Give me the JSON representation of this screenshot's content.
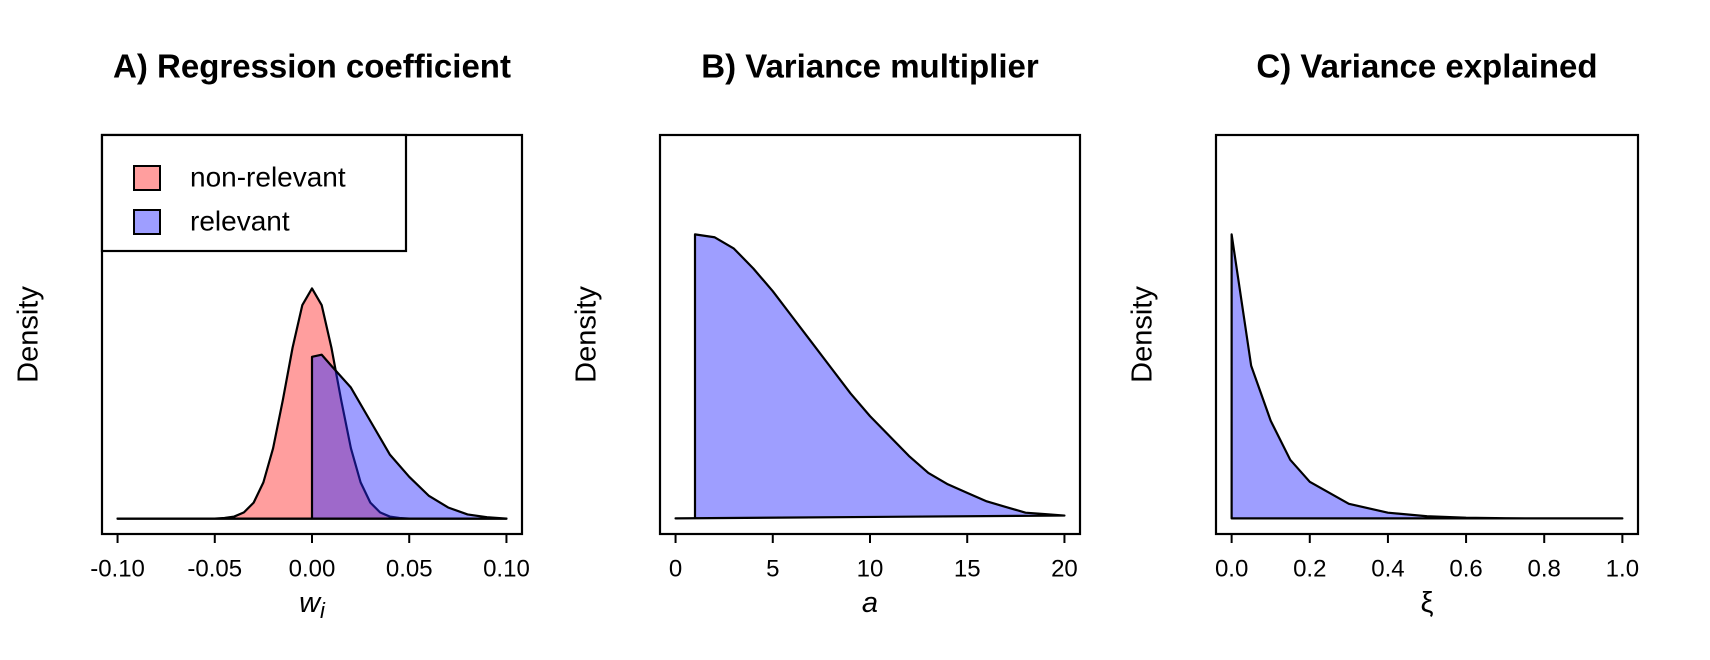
{
  "chart_data": [
    {
      "type": "area",
      "title": "A) Regression coefficient",
      "ylabel": "Density",
      "xlabel": {
        "text": "w",
        "subscript": "i"
      },
      "xlim": [
        -0.108,
        0.108
      ],
      "ylim": [
        -2.2,
        55
      ],
      "xticks": [
        {
          "value": -0.1,
          "label": "-0.10"
        },
        {
          "value": -0.05,
          "label": "-0.05"
        },
        {
          "value": 0,
          "label": "0.00"
        },
        {
          "value": 0.05,
          "label": "0.05"
        },
        {
          "value": 0.1,
          "label": "0.10"
        }
      ],
      "legend": "top-left",
      "series": [
        {
          "name": "non-relevant",
          "color": "rgba(255,40,40,0.45)",
          "x": [
            -0.1,
            -0.05,
            -0.045,
            -0.04,
            -0.035,
            -0.03,
            -0.025,
            -0.02,
            -0.015,
            -0.01,
            -0.005,
            0,
            0.005,
            0.01,
            0.015,
            0.02,
            0.025,
            0.03,
            0.035,
            0.04,
            0.045,
            0.05,
            0.1
          ],
          "values": [
            0,
            0,
            0.1,
            0.3,
            0.9,
            2.3,
            5.2,
            10.1,
            17.0,
            24.5,
            30.6,
            33,
            30.6,
            24.5,
            17.0,
            10.1,
            5.2,
            2.3,
            0.9,
            0.3,
            0.1,
            0,
            0
          ]
        },
        {
          "name": "relevant",
          "color": "rgba(40,40,255,0.45)",
          "x": [
            -0.1,
            0,
            0,
            0.005,
            0.01,
            0.02,
            0.03,
            0.04,
            0.05,
            0.06,
            0.07,
            0.08,
            0.09,
            0.1
          ],
          "values": [
            0,
            0,
            23.2,
            23.5,
            21.9,
            18.8,
            14,
            9.2,
            6,
            3.3,
            1.6,
            0.6,
            0.2,
            0
          ]
        }
      ]
    },
    {
      "type": "area",
      "title": "B) Variance multiplier",
      "ylabel": "Density",
      "xlabel": {
        "text": "a"
      },
      "xlim": [
        -0.8,
        20.8
      ],
      "ylim": [
        -0.0055,
        0.135
      ],
      "xticks": [
        0,
        5,
        10,
        15,
        20
      ],
      "series": [
        {
          "color": "rgba(40,40,255,0.45)",
          "x": [
            0,
            1,
            1,
            2,
            3,
            4,
            5,
            6,
            7,
            8,
            9,
            10,
            11,
            12,
            13,
            14,
            15,
            16,
            17,
            18,
            19,
            20
          ],
          "values": [
            0,
            0,
            0.1,
            0.099,
            0.095,
            0.088,
            0.08,
            0.071,
            0.062,
            0.053,
            0.044,
            0.036,
            0.029,
            0.022,
            0.016,
            0.012,
            0.009,
            0.006,
            0.004,
            0.002,
            0.0015,
            0.001
          ]
        }
      ]
    },
    {
      "type": "area",
      "title": "C) Variance explained",
      "ylabel": "Density",
      "xlabel": {
        "text": "ξ"
      },
      "xlim": [
        -0.04,
        1.04
      ],
      "ylim": [
        -0.44,
        10.8
      ],
      "xticks": [
        {
          "value": 0,
          "label": "0.0"
        },
        {
          "value": 0.2,
          "label": "0.2"
        },
        {
          "value": 0.4,
          "label": "0.4"
        },
        {
          "value": 0.6,
          "label": "0.6"
        },
        {
          "value": 0.8,
          "label": "0.8"
        },
        {
          "value": 1,
          "label": "1.0"
        }
      ],
      "series": [
        {
          "color": "rgba(40,40,255,0.45)",
          "x": [
            0,
            0,
            0.05,
            0.1,
            0.15,
            0.2,
            0.3,
            0.4,
            0.5,
            0.6,
            0.7,
            0.8,
            0.9,
            1.0
          ],
          "values": [
            0,
            8,
            4.3,
            2.75,
            1.65,
            1.03,
            0.41,
            0.16,
            0.06,
            0.02,
            0.005,
            0,
            0,
            0
          ]
        }
      ]
    }
  ]
}
